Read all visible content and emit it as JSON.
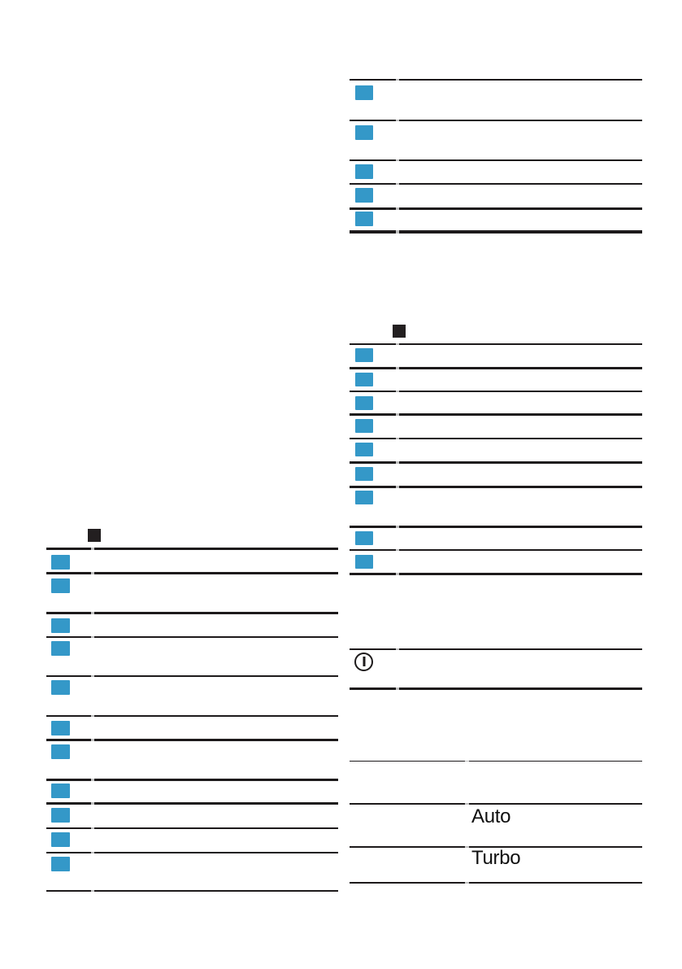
{
  "colors": {
    "line": "#1d1a1b",
    "gap_trace": "#c0c0c0",
    "marker_blue": "#3498c8",
    "marker_black": "#231f20",
    "text": "#0f0f0f"
  },
  "left_table": {
    "header_icon": "black-square-placeholder",
    "rows": [
      {
        "marker": "blue-square"
      },
      {
        "marker": "blue-square"
      },
      {
        "marker": "blue-square"
      },
      {
        "marker": "blue-square"
      },
      {
        "marker": "blue-square"
      },
      {
        "marker": "blue-square"
      },
      {
        "marker": "blue-square"
      },
      {
        "marker": "blue-square"
      },
      {
        "marker": "blue-square"
      },
      {
        "marker": "blue-square"
      },
      {
        "marker": "blue-square"
      }
    ]
  },
  "right_table_top": {
    "rows": [
      {
        "marker": "blue-square"
      },
      {
        "marker": "blue-square"
      },
      {
        "marker": "blue-square"
      },
      {
        "marker": "blue-square"
      },
      {
        "marker": "blue-square"
      }
    ]
  },
  "right_table_mid": {
    "header_icon": "black-square-placeholder",
    "rows": [
      {
        "marker": "blue-square"
      },
      {
        "marker": "blue-square"
      },
      {
        "marker": "blue-square"
      },
      {
        "marker": "blue-square"
      },
      {
        "marker": "blue-square"
      },
      {
        "marker": "blue-square"
      },
      {
        "marker": "blue-square"
      },
      {
        "marker": "blue-square"
      },
      {
        "marker": "blue-square"
      }
    ]
  },
  "power_section": {
    "icon": "power-symbol"
  },
  "speed_table": {
    "rows": [
      {
        "label": ""
      },
      {
        "label": "Auto"
      },
      {
        "label": "Turbo"
      }
    ]
  }
}
